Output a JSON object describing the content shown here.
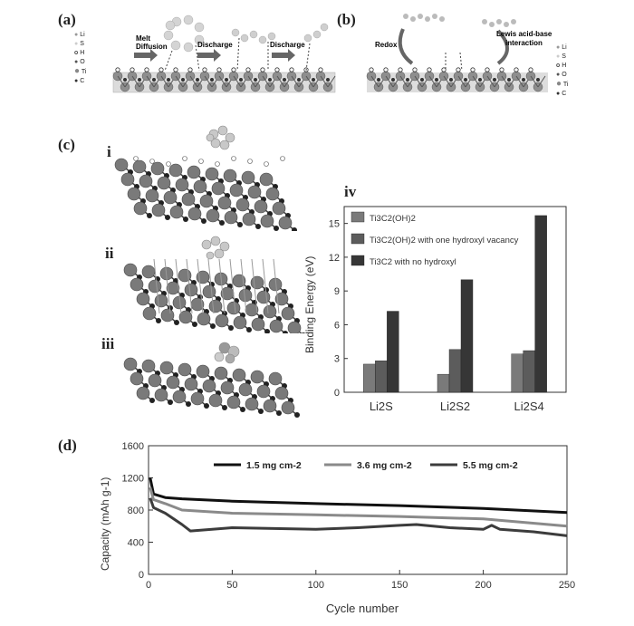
{
  "panels": {
    "a": {
      "letter": "(a)",
      "legend": [
        "Li",
        "S",
        "H",
        "O",
        "Ti",
        "C"
      ],
      "steps": [
        "Melt",
        "Diffusion",
        "Discharge",
        "Discharge"
      ]
    },
    "b": {
      "letter": "(b)",
      "legend": [
        "Li",
        "S",
        "H",
        "O",
        "Ti",
        "C"
      ],
      "redox": "Redox",
      "lewis_line1": "Lewis acid-base",
      "lewis_line2": "interaction"
    },
    "c": {
      "letter": "(c)",
      "subpanels": [
        "i",
        "ii",
        "iii",
        "iv"
      ]
    },
    "d": {
      "letter": "(d)"
    }
  },
  "colors": {
    "series1": "#7a7a7a",
    "series2": "#5c5c5c",
    "series3": "#363636",
    "line1": "#111111",
    "line2": "#8a8a8a",
    "line3": "#3c3c3c"
  },
  "chart_data": [
    {
      "type": "bar",
      "panel": "iv",
      "ylabel": "Binding Energy (eV)",
      "ylim": [
        0,
        16.5
      ],
      "yticks": [
        "0",
        "3",
        "6",
        "9",
        "12",
        "15"
      ],
      "categories": [
        "Li2S",
        "Li2S2",
        "Li2S4"
      ],
      "series": [
        {
          "name": "Ti3C2(OH)2",
          "values": [
            2.5,
            1.6,
            3.4
          ]
        },
        {
          "name": "Ti3C2(OH)2 with one hydroxyl vacancy",
          "values": [
            2.8,
            3.8,
            3.7
          ]
        },
        {
          "name": "Ti3C2 with no hydroxyl",
          "values": [
            7.2,
            10.0,
            15.7
          ]
        }
      ],
      "legend_position": "top-left"
    },
    {
      "type": "line",
      "panel": "d",
      "xlabel": "Cycle number",
      "ylabel": "Capacity (mAh g-1)",
      "xlim": [
        0,
        250
      ],
      "ylim": [
        0,
        1600
      ],
      "xticks": [
        "0",
        "50",
        "100",
        "150",
        "200",
        "250"
      ],
      "yticks": [
        "0",
        "400",
        "800",
        "1200",
        "1600"
      ],
      "series": [
        {
          "name": "1.5 mg cm-2",
          "points": [
            [
              1,
              1200
            ],
            [
              3,
              1000
            ],
            [
              10,
              955
            ],
            [
              20,
              940
            ],
            [
              50,
              910
            ],
            [
              100,
              880
            ],
            [
              150,
              855
            ],
            [
              200,
              820
            ],
            [
              250,
              770
            ]
          ]
        },
        {
          "name": "3.6 mg cm-2",
          "points": [
            [
              1,
              1080
            ],
            [
              3,
              930
            ],
            [
              10,
              880
            ],
            [
              20,
              800
            ],
            [
              50,
              760
            ],
            [
              100,
              740
            ],
            [
              150,
              720
            ],
            [
              200,
              690
            ],
            [
              250,
              600
            ]
          ]
        },
        {
          "name": "5.5 mg cm-2",
          "points": [
            [
              1,
              950
            ],
            [
              3,
              830
            ],
            [
              10,
              760
            ],
            [
              20,
              620
            ],
            [
              25,
              540
            ],
            [
              50,
              580
            ],
            [
              75,
              570
            ],
            [
              100,
              560
            ],
            [
              125,
              580
            ],
            [
              150,
              610
            ],
            [
              160,
              620
            ],
            [
              180,
              580
            ],
            [
              200,
              560
            ],
            [
              205,
              610
            ],
            [
              210,
              560
            ],
            [
              230,
              530
            ],
            [
              250,
              480
            ]
          ]
        }
      ],
      "legend_position": "top"
    }
  ]
}
